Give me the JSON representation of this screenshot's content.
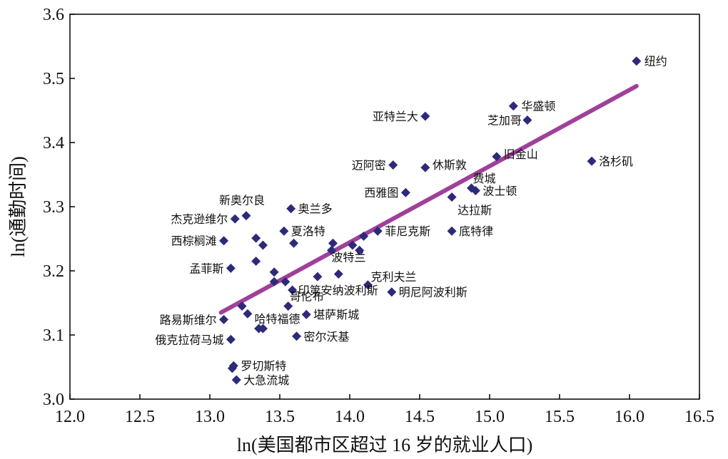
{
  "chart_data": {
    "type": "scatter",
    "title": "",
    "xlabel": "ln(美国都市区超过 16 岁的就业人口)",
    "ylabel": "ln(通勤时间)",
    "xlim": [
      12.0,
      16.5
    ],
    "ylim": [
      3.0,
      3.6
    ],
    "xticks": [
      "12.0",
      "12.5",
      "13.0",
      "13.5",
      "14.0",
      "14.5",
      "15.0",
      "15.5",
      "16.0",
      "16.5"
    ],
    "yticks": [
      "3.0",
      "3.1",
      "3.2",
      "3.3",
      "3.4",
      "3.5",
      "3.6"
    ],
    "grid": false,
    "marker_color": "#2e2a7a",
    "trend_color": "#a0409a",
    "trendline": {
      "x": [
        13.08,
        16.05
      ],
      "y": [
        3.135,
        3.488
      ]
    },
    "points": [
      {
        "x": 16.05,
        "y": 3.527,
        "label": "纽约"
      },
      {
        "x": 15.17,
        "y": 3.457,
        "label": "华盛顿"
      },
      {
        "x": 15.27,
        "y": 3.435,
        "label": "芝加哥"
      },
      {
        "x": 14.54,
        "y": 3.441,
        "label": "亚特兰大"
      },
      {
        "x": 15.73,
        "y": 3.371,
        "label": "洛杉矶"
      },
      {
        "x": 15.05,
        "y": 3.378,
        "label": "旧金山"
      },
      {
        "x": 14.54,
        "y": 3.361,
        "label": "休斯敦"
      },
      {
        "x": 14.31,
        "y": 3.365,
        "label": "迈阿密"
      },
      {
        "x": 14.87,
        "y": 3.329,
        "label": "费城"
      },
      {
        "x": 14.9,
        "y": 3.325,
        "label": "波士顿"
      },
      {
        "x": 14.4,
        "y": 3.322,
        "label": "西雅图"
      },
      {
        "x": 14.73,
        "y": 3.315,
        "label": "达拉斯"
      },
      {
        "x": 14.2,
        "y": 3.262,
        "label": "菲尼克斯"
      },
      {
        "x": 14.73,
        "y": 3.262,
        "label": "底特律"
      },
      {
        "x": 13.58,
        "y": 3.297,
        "label": "奥兰多"
      },
      {
        "x": 13.26,
        "y": 3.286,
        "label": "新奥尔良"
      },
      {
        "x": 13.18,
        "y": 3.281,
        "label": "杰克逊维尔"
      },
      {
        "x": 13.53,
        "y": 3.262,
        "label": "夏洛特"
      },
      {
        "x": 13.1,
        "y": 3.247,
        "label": "西棕榈滩"
      },
      {
        "x": 13.33,
        "y": 3.251,
        "label": ""
      },
      {
        "x": 13.38,
        "y": 3.24,
        "label": ""
      },
      {
        "x": 13.6,
        "y": 3.243,
        "label": ""
      },
      {
        "x": 13.88,
        "y": 3.243,
        "label": ""
      },
      {
        "x": 13.87,
        "y": 3.232,
        "label": ""
      },
      {
        "x": 14.02,
        "y": 3.24,
        "label": ""
      },
      {
        "x": 14.07,
        "y": 3.232,
        "label": ""
      },
      {
        "x": 14.1,
        "y": 3.254,
        "label": ""
      },
      {
        "x": 13.33,
        "y": 3.215,
        "label": ""
      },
      {
        "x": 13.15,
        "y": 3.204,
        "label": "孟菲斯"
      },
      {
        "x": 13.46,
        "y": 3.198,
        "label": ""
      },
      {
        "x": 13.77,
        "y": 3.191,
        "label": ""
      },
      {
        "x": 13.92,
        "y": 3.195,
        "label": "波特兰"
      },
      {
        "x": 13.46,
        "y": 3.183,
        "label": ""
      },
      {
        "x": 13.54,
        "y": 3.183,
        "label": ""
      },
      {
        "x": 14.13,
        "y": 3.178,
        "label": "克利夫兰"
      },
      {
        "x": 13.59,
        "y": 3.17,
        "label": "印第安纳波利斯"
      },
      {
        "x": 14.3,
        "y": 3.167,
        "label": "明尼阿波利斯"
      },
      {
        "x": 13.56,
        "y": 3.145,
        "label": "哥伦布"
      },
      {
        "x": 13.23,
        "y": 3.145,
        "label": ""
      },
      {
        "x": 13.27,
        "y": 3.133,
        "label": ""
      },
      {
        "x": 13.69,
        "y": 3.132,
        "label": "堪萨斯城"
      },
      {
        "x": 13.1,
        "y": 3.124,
        "label": "路易斯维尔"
      },
      {
        "x": 13.35,
        "y": 3.11,
        "label": ""
      },
      {
        "x": 13.38,
        "y": 3.11,
        "label": "哈特福德"
      },
      {
        "x": 13.62,
        "y": 3.098,
        "label": "密尔沃基"
      },
      {
        "x": 13.15,
        "y": 3.093,
        "label": "俄克拉荷马城"
      },
      {
        "x": 13.17,
        "y": 3.052,
        "label": "罗切斯特"
      },
      {
        "x": 13.16,
        "y": 3.048,
        "label": ""
      },
      {
        "x": 13.19,
        "y": 3.03,
        "label": "大急流城"
      }
    ]
  }
}
